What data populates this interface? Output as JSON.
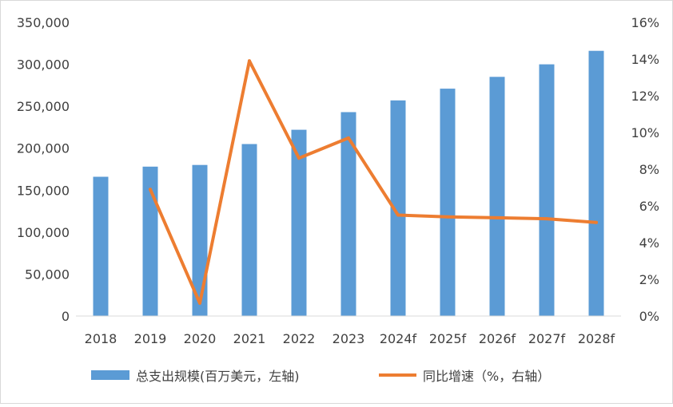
{
  "chart_data": {
    "type": "bar",
    "categories": [
      "2018",
      "2019",
      "2020",
      "2021",
      "2022",
      "2023",
      "2024f",
      "2025f",
      "2026f",
      "2027f",
      "2028f"
    ],
    "series": [
      {
        "name": "总支出规模(百万美元，左轴)",
        "type": "bar",
        "axis": "left",
        "color": "#5b9bd5",
        "values": [
          166000,
          178000,
          180000,
          205000,
          222000,
          243000,
          257000,
          271000,
          285000,
          300000,
          316000
        ]
      },
      {
        "name": "同比增速（%，右轴）",
        "type": "line",
        "axis": "right",
        "color": "#ed7d31",
        "values": [
          null,
          6.9,
          0.7,
          13.9,
          8.6,
          9.7,
          5.5,
          5.4,
          5.35,
          5.3,
          5.1
        ]
      }
    ],
    "y_left": {
      "ylim": [
        0,
        350000
      ],
      "ticks": [
        0,
        50000,
        100000,
        150000,
        200000,
        250000,
        300000,
        350000
      ],
      "tick_labels": [
        "0",
        "50,000",
        "100,000",
        "150,000",
        "200,000",
        "250,000",
        "300,000",
        "350,000"
      ]
    },
    "y_right": {
      "ylim": [
        0,
        16
      ],
      "ticks": [
        0,
        2,
        4,
        6,
        8,
        10,
        12,
        14,
        16
      ],
      "tick_labels": [
        "0%",
        "2%",
        "4%",
        "6%",
        "8%",
        "10%",
        "12%",
        "14%",
        "16%"
      ]
    },
    "grid": false,
    "legend_position": "bottom"
  }
}
